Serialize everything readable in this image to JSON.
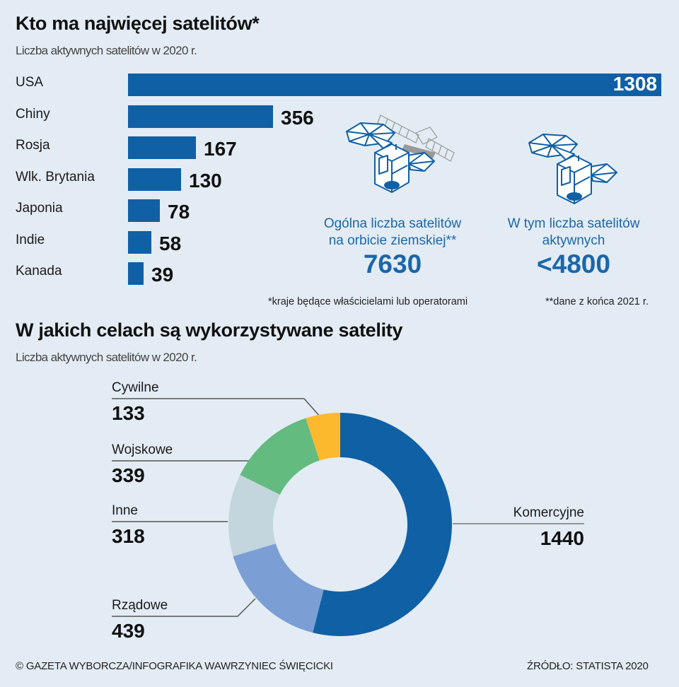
{
  "section1": {
    "title": "Kto ma najwięcej satelitów*",
    "subtitle": "Liczba aktywnych satelitów w 2020 r."
  },
  "stats": {
    "total": {
      "caption_line1": "Ogólna liczba satelitów",
      "caption_line2": "na orbicie ziemskiej**",
      "value": "7630",
      "icon": "satellite-pair-icon"
    },
    "active": {
      "caption_line1": "W tym liczba satelitów",
      "caption_line2": "aktywnych",
      "value": "<4800",
      "icon": "satellite-icon"
    }
  },
  "footnotes": {
    "one": "*kraje będące właścicielami lub operatorami",
    "two": "**dane z końca 2021 r."
  },
  "section2": {
    "title": "W jakich celach są wykorzystywane satelity",
    "subtitle": "Liczba aktywnych satelitów w 2020 r."
  },
  "credits": {
    "left": "© GAZETA WYBORCZA/INFOGRAFIKA WAWRZYNIEC ŚWIĘCICKI",
    "right": "ŹRÓDŁO: STATISTA 2020"
  },
  "colors": {
    "background": "#e3ecf4",
    "bar": "#1060a5",
    "accent_text": "#1b66ab",
    "komercyjne": "#1060a5",
    "rzadowe": "#7b9fd4",
    "inne": "#c3d6de",
    "wojskowe": "#63bb7f",
    "cywilne": "#fdb92d"
  },
  "chart_data": [
    {
      "type": "bar",
      "orientation": "horizontal",
      "title": "Kto ma najwięcej satelitów*",
      "subtitle": "Liczba aktywnych satelitów w 2020 r.",
      "categories": [
        "USA",
        "Chiny",
        "Rosja",
        "Wlk. Brytania",
        "Japonia",
        "Indie",
        "Kanada"
      ],
      "values": [
        1308,
        356,
        167,
        130,
        78,
        58,
        39
      ],
      "labels": [
        "1308",
        "356",
        "167",
        "130",
        "78",
        "58",
        "39"
      ],
      "xlabel": "",
      "ylabel": "",
      "grid": false
    },
    {
      "type": "pie",
      "variant": "donut",
      "title": "W jakich celach są wykorzystywane satelity",
      "subtitle": "Liczba aktywnych satelitów w 2020 r.",
      "categories": [
        "Komercyjne",
        "Rządowe",
        "Inne",
        "Wojskowe",
        "Cywilne"
      ],
      "values": [
        1440,
        439,
        318,
        339,
        133
      ],
      "labels": [
        "1440",
        "439",
        "318",
        "339",
        "133"
      ],
      "colors": [
        "#1060a5",
        "#7b9fd4",
        "#c3d6de",
        "#63bb7f",
        "#fdb92d"
      ],
      "start_angle": "12 o'clock, clockwise"
    }
  ]
}
